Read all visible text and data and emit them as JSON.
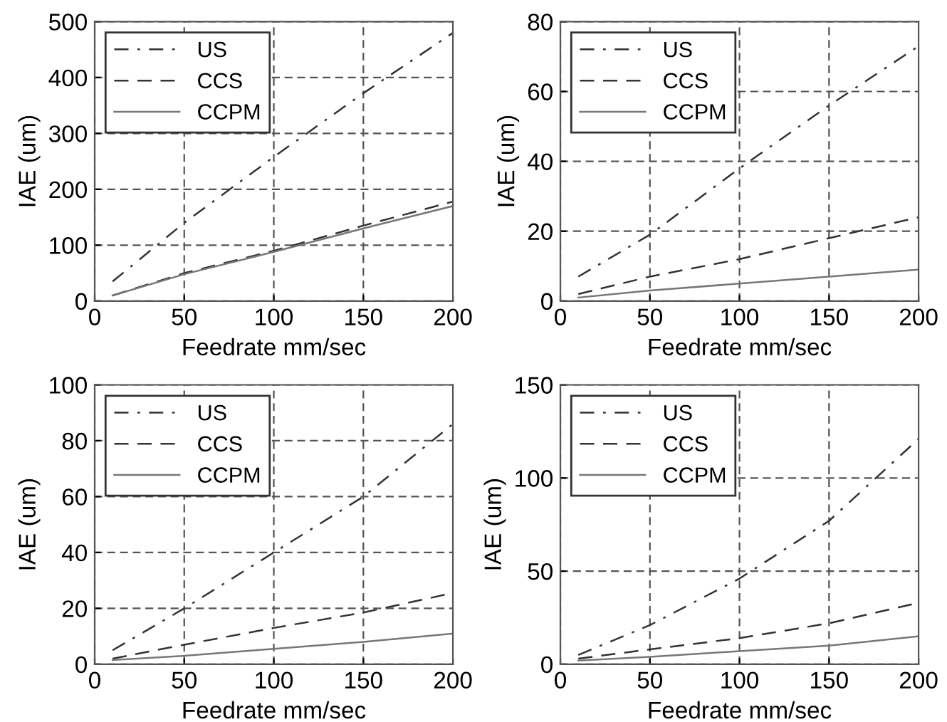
{
  "chart_data": [
    {
      "type": "line",
      "xlabel": "Feedrate mm/sec",
      "ylabel": "IAE (um)",
      "x": [
        10,
        50,
        100,
        150,
        200
      ],
      "xlim": [
        0,
        200
      ],
      "xticks": [
        0,
        50,
        100,
        150,
        200
      ],
      "ylim": [
        0,
        500
      ],
      "yticks": [
        0,
        100,
        200,
        300,
        400,
        500
      ],
      "grid": true,
      "legend": "top left",
      "marker": "none",
      "series": [
        {
          "name": "US",
          "color": "#333333",
          "line_style": "dashdot",
          "values": [
            35,
            140,
            258,
            372,
            480
          ]
        },
        {
          "name": "CCS",
          "color": "#333333",
          "line_style": "dashed",
          "values": [
            10,
            50,
            90,
            135,
            178
          ]
        },
        {
          "name": "CCPM",
          "color": "#777777",
          "line_style": "solid",
          "values": [
            10,
            48,
            88,
            130,
            170
          ]
        }
      ]
    },
    {
      "type": "line",
      "xlabel": "Feedrate mm/sec",
      "ylabel": "IAE (um)",
      "x": [
        10,
        50,
        100,
        150,
        200
      ],
      "xlim": [
        0,
        200
      ],
      "xticks": [
        0,
        50,
        100,
        150,
        200
      ],
      "ylim": [
        0,
        80
      ],
      "yticks": [
        0,
        20,
        40,
        60,
        80
      ],
      "grid": true,
      "legend": "top left",
      "marker": "none",
      "series": [
        {
          "name": "US",
          "color": "#333333",
          "line_style": "dashdot",
          "values": [
            7,
            19,
            38,
            56,
            73
          ]
        },
        {
          "name": "CCS",
          "color": "#333333",
          "line_style": "dashed",
          "values": [
            2,
            7,
            12,
            18,
            24
          ]
        },
        {
          "name": "CCPM",
          "color": "#777777",
          "line_style": "solid",
          "values": [
            1,
            3,
            5,
            7,
            9
          ]
        }
      ]
    },
    {
      "type": "line",
      "xlabel": "Feedrate mm/sec",
      "ylabel": "IAE (um)",
      "x": [
        10,
        50,
        100,
        150,
        200
      ],
      "xlim": [
        0,
        200
      ],
      "xticks": [
        0,
        50,
        100,
        150,
        200
      ],
      "ylim": [
        0,
        100
      ],
      "yticks": [
        0,
        20,
        40,
        60,
        80,
        100
      ],
      "grid": true,
      "legend": "top left",
      "marker": "none",
      "series": [
        {
          "name": "US",
          "color": "#333333",
          "line_style": "dashdot",
          "values": [
            5,
            20,
            40,
            60,
            86
          ]
        },
        {
          "name": "CCS",
          "color": "#333333",
          "line_style": "dashed",
          "values": [
            2,
            7,
            13,
            18.5,
            25.5
          ]
        },
        {
          "name": "CCPM",
          "color": "#777777",
          "line_style": "solid",
          "values": [
            1.5,
            3,
            5.5,
            8,
            11
          ]
        }
      ]
    },
    {
      "type": "line",
      "xlabel": "Feedrate mm/sec",
      "ylabel": "IAE (um)",
      "x": [
        10,
        50,
        100,
        150,
        200
      ],
      "xlim": [
        0,
        200
      ],
      "xticks": [
        0,
        50,
        100,
        150,
        200
      ],
      "ylim": [
        0,
        150
      ],
      "yticks": [
        0,
        50,
        100,
        150
      ],
      "grid": true,
      "legend": "top left",
      "marker": "none",
      "series": [
        {
          "name": "US",
          "color": "#333333",
          "line_style": "dashdot",
          "values": [
            5,
            21,
            46,
            77,
            121
          ]
        },
        {
          "name": "CCS",
          "color": "#333333",
          "line_style": "dashed",
          "values": [
            3,
            8,
            14,
            22,
            33
          ]
        },
        {
          "name": "CCPM",
          "color": "#777777",
          "line_style": "solid",
          "values": [
            2,
            4,
            7,
            10,
            15
          ]
        }
      ]
    }
  ]
}
